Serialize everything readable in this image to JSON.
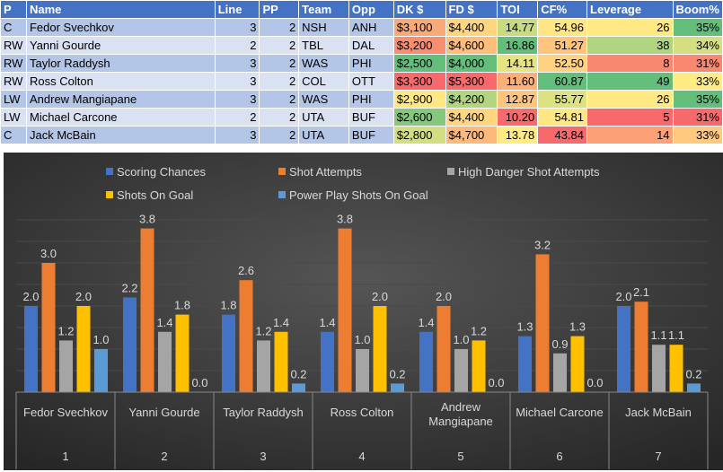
{
  "table": {
    "headers": [
      "P",
      "Name",
      "Line",
      "PP",
      "Team",
      "Opp",
      "DK $",
      "FD $",
      "TOI",
      "CF%",
      "Leverage",
      "Boom%"
    ],
    "rows": [
      {
        "cells": [
          "C",
          "Fedor Svechkov",
          "3",
          "2",
          "NSH",
          "ANH",
          "$3,100",
          "$4,400",
          "14.77",
          "54.96",
          "26",
          "35%"
        ],
        "colors": [
          "#F8A978",
          "#FFD57F",
          "#C7DB81",
          "#FFE683",
          "#FFE984",
          "#63BE7B"
        ]
      },
      {
        "cells": [
          "RW",
          "Yanni Gourde",
          "2",
          "2",
          "TBL",
          "DAL",
          "$3,200",
          "$4,600",
          "16.86",
          "51.27",
          "38",
          "34%"
        ],
        "colors": [
          "#F98D70",
          "#FDBE7C",
          "#63BE7B",
          "#FEC47E",
          "#B0D480",
          "#D5DF82"
        ]
      },
      {
        "cells": [
          "RW",
          "Taylor Raddysh",
          "3",
          "2",
          "WAS",
          "PHI",
          "$2,500",
          "$4,000",
          "14.11",
          "52.50",
          "8",
          "31%"
        ],
        "colors": [
          "#63BE7B",
          "#63BE7B",
          "#E6E383",
          "#FED280",
          "#F98870",
          "#F98870"
        ]
      },
      {
        "cells": [
          "RW",
          "Ross Colton",
          "3",
          "2",
          "COL",
          "OTT",
          "$3,300",
          "$5,300",
          "11.60",
          "60.87",
          "49",
          "33%"
        ],
        "colors": [
          "#F8696B",
          "#F8696B",
          "#FCB079",
          "#63BE7B",
          "#63BE7B",
          "#FFEB84"
        ]
      },
      {
        "cells": [
          "LW",
          "Andrew Mangiapane",
          "3",
          "2",
          "WAS",
          "PHI",
          "$2,900",
          "$4,200",
          "12.87",
          "55.77",
          "26",
          "35%"
        ],
        "colors": [
          "#FFE784",
          "#B1D580",
          "#FDC57D",
          "#DCE182",
          "#FFE984",
          "#63BE7B"
        ]
      },
      {
        "cells": [
          "LW",
          "Michael Carcone",
          "2",
          "2",
          "UTA",
          "BUF",
          "$2,600",
          "$4,400",
          "10.20",
          "54.81",
          "5",
          "31%"
        ],
        "colors": [
          "#85C77D",
          "#FFD57F",
          "#F8696B",
          "#FFE884",
          "#F8696B",
          "#F8696B"
        ]
      },
      {
        "cells": [
          "C",
          "Jack McBain",
          "3",
          "2",
          "UTA",
          "BUF",
          "$2,800",
          "$4,700",
          "13.78",
          "43.84",
          "14",
          "33%"
        ],
        "colors": [
          "#D2DE82",
          "#FDB97B",
          "#FFEA84",
          "#F8696B",
          "#FBA077",
          "#FFC97F"
        ]
      }
    ]
  },
  "chart_data": {
    "type": "bar",
    "categories": [
      "Fedor Svechkov",
      "Yanni Gourde",
      "Taylor Raddysh",
      "Ross Colton",
      "Andrew Mangiapane",
      "Michael Carcone",
      "Jack McBain"
    ],
    "category_numbers": [
      "1",
      "2",
      "3",
      "4",
      "5",
      "6",
      "7"
    ],
    "ylim": [
      0,
      4
    ],
    "legend_position": "top",
    "series": [
      {
        "name": "Scoring Chances",
        "color": "#4472C4",
        "values": [
          2.0,
          2.2,
          1.8,
          1.4,
          1.4,
          1.3,
          2.0
        ]
      },
      {
        "name": "Shot Attempts",
        "color": "#ED7D31",
        "values": [
          3.0,
          3.8,
          2.6,
          3.8,
          2.0,
          3.2,
          2.1
        ]
      },
      {
        "name": "High Danger Shot Attempts",
        "color": "#A5A5A5",
        "values": [
          1.2,
          1.4,
          1.2,
          1.0,
          1.0,
          0.9,
          1.1
        ]
      },
      {
        "name": "Shots On Goal",
        "color": "#FFC000",
        "values": [
          2.0,
          1.8,
          1.4,
          2.0,
          1.2,
          1.3,
          1.1
        ]
      },
      {
        "name": "Power Play Shots On Goal",
        "color": "#5B9BD5",
        "values": [
          1.0,
          0.0,
          0.2,
          0.2,
          0.0,
          0.0,
          0.2
        ]
      }
    ]
  }
}
